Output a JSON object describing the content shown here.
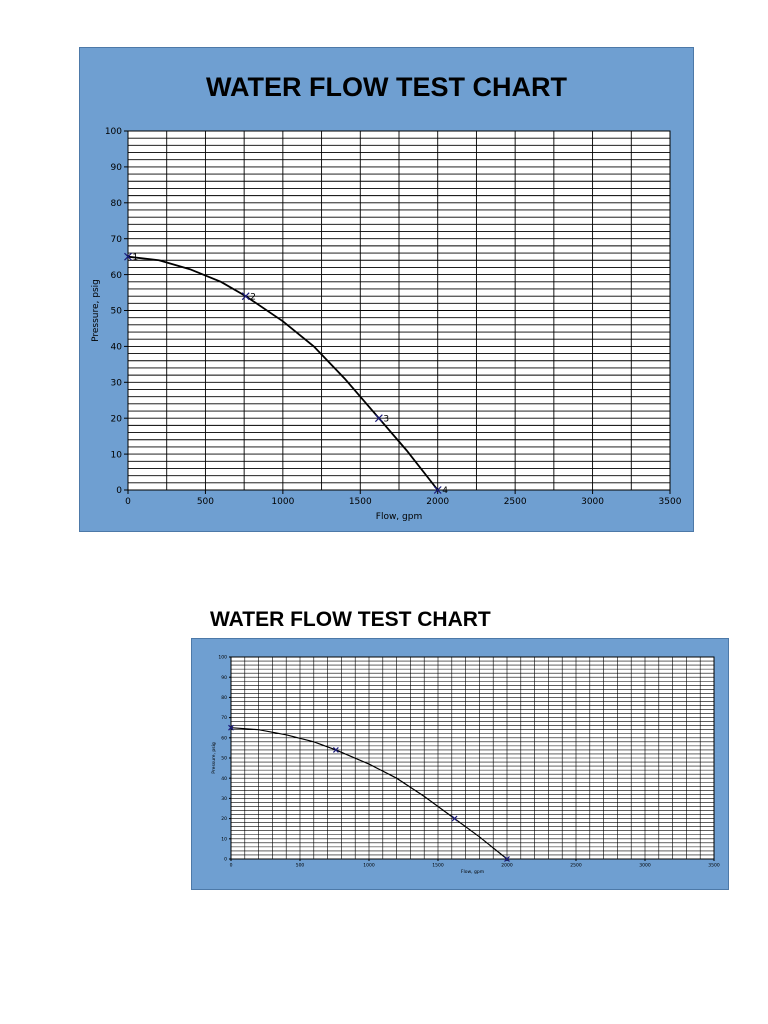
{
  "chart_data": [
    {
      "type": "line",
      "title": "WATER FLOW TEST CHART",
      "xlabel": "Flow, gpm",
      "ylabel": "Pressure, psig",
      "xlim": [
        0,
        3500
      ],
      "ylim": [
        0,
        100
      ],
      "xticks": [
        0,
        500,
        1000,
        1500,
        2000,
        2500,
        3000,
        3500
      ],
      "yticks": [
        0,
        10,
        20,
        30,
        40,
        50,
        60,
        70,
        80,
        90,
        100
      ],
      "grid": true,
      "background_color": "#6f9fd1",
      "line_color": "#000000",
      "marker_color": "#1a1a7a",
      "curve": [
        {
          "x": 0,
          "y": 65
        },
        {
          "x": 200,
          "y": 64
        },
        {
          "x": 400,
          "y": 61.5
        },
        {
          "x": 600,
          "y": 58
        },
        {
          "x": 760,
          "y": 54
        },
        {
          "x": 1000,
          "y": 47
        },
        {
          "x": 1200,
          "y": 40
        },
        {
          "x": 1400,
          "y": 31
        },
        {
          "x": 1620,
          "y": 20
        },
        {
          "x": 1800,
          "y": 11
        },
        {
          "x": 2000,
          "y": 0
        }
      ],
      "points": [
        {
          "label": "1",
          "x": 0,
          "y": 65
        },
        {
          "label": "2",
          "x": 760,
          "y": 54
        },
        {
          "label": "3",
          "x": 1620,
          "y": 20
        },
        {
          "label": "4",
          "x": 2000,
          "y": 0
        }
      ]
    },
    {
      "type": "line",
      "title": "WATER FLOW TEST CHART",
      "xlabel": "Flow, gpm",
      "ylabel": "Pressure, psig",
      "xlim": [
        0,
        3500
      ],
      "ylim": [
        0,
        100
      ],
      "xticks": [
        0,
        500,
        1000,
        1500,
        2000,
        2500,
        3000,
        3500
      ],
      "yticks": [
        0,
        10,
        20,
        30,
        40,
        50,
        60,
        70,
        80,
        90,
        100
      ],
      "grid": true,
      "background_color": "#6f9fd1",
      "line_color": "#000000",
      "marker_color": "#1a1a7a",
      "curve": [
        {
          "x": 0,
          "y": 65
        },
        {
          "x": 200,
          "y": 64
        },
        {
          "x": 400,
          "y": 61.5
        },
        {
          "x": 600,
          "y": 58
        },
        {
          "x": 760,
          "y": 54
        },
        {
          "x": 1000,
          "y": 47
        },
        {
          "x": 1200,
          "y": 40
        },
        {
          "x": 1400,
          "y": 31
        },
        {
          "x": 1620,
          "y": 20
        },
        {
          "x": 1800,
          "y": 11
        },
        {
          "x": 2000,
          "y": 0
        }
      ],
      "points": [
        {
          "label": "",
          "x": 0,
          "y": 65
        },
        {
          "label": "",
          "x": 760,
          "y": 54
        },
        {
          "label": "",
          "x": 1620,
          "y": 20
        },
        {
          "label": "",
          "x": 2000,
          "y": 0
        }
      ]
    }
  ]
}
